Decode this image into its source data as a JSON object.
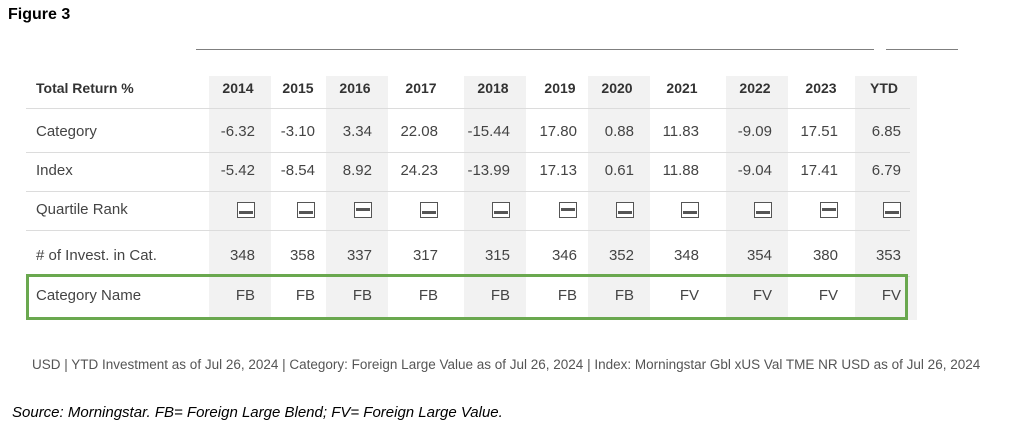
{
  "figure_title": "Figure 3",
  "table": {
    "corner_label": "Total Return %",
    "columns": [
      "2014",
      "2015",
      "2016",
      "2017",
      "2018",
      "2019",
      "2020",
      "2021",
      "2022",
      "2023",
      "YTD"
    ],
    "rows": [
      {
        "label": "Category",
        "values": [
          "-6.32",
          "-3.10",
          "3.34",
          "22.08",
          "-15.44",
          "17.80",
          "0.88",
          "11.83",
          "-9.09",
          "17.51",
          "6.85"
        ]
      },
      {
        "label": "Index",
        "values": [
          "-5.42",
          "-8.54",
          "8.92",
          "24.23",
          "-13.99",
          "17.13",
          "0.61",
          "11.88",
          "-9.04",
          "17.41",
          "6.79"
        ]
      },
      {
        "label": "Quartile Rank",
        "quartiles": [
          3,
          3,
          2,
          3,
          3,
          2,
          3,
          3,
          3,
          2,
          3
        ]
      },
      {
        "label": "# of Invest. in Cat.",
        "values": [
          "348",
          "358",
          "337",
          "317",
          "315",
          "346",
          "352",
          "348",
          "354",
          "380",
          "353"
        ]
      },
      {
        "label": "Category Name",
        "values": [
          "FB",
          "FB",
          "FB",
          "FB",
          "FB",
          "FB",
          "FB",
          "FV",
          "FV",
          "FV",
          "FV"
        ]
      }
    ],
    "highlight_color": "#6aa84f"
  },
  "footnote": "USD | YTD Investment as of Jul 26, 2024 | Category: Foreign Large Value as of Jul 26, 2024 | Index: Morningstar Gbl xUS Val TME NR USD as of Jul 26, 2024",
  "source": "Source: Morningstar. FB= Foreign Large Blend; FV= Foreign Large Value."
}
